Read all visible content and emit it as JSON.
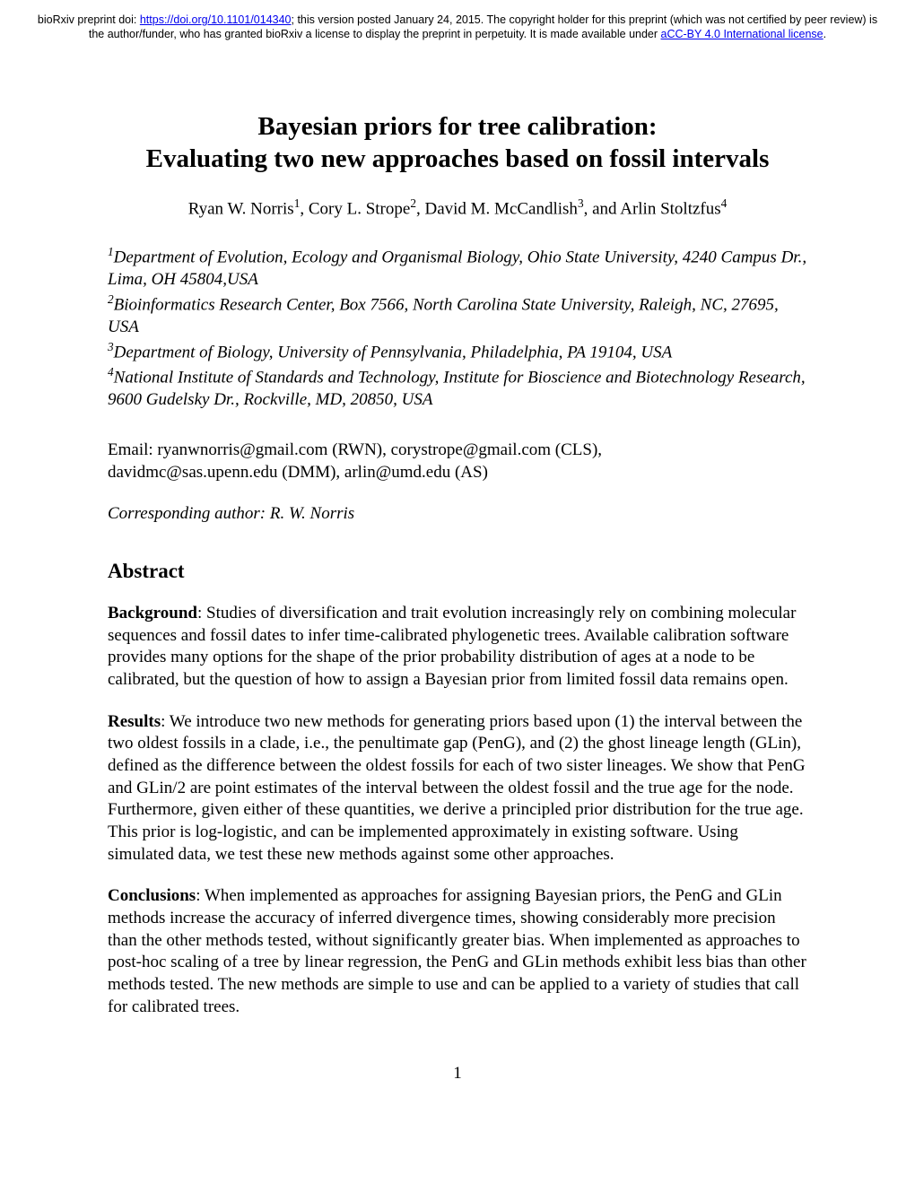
{
  "preprint_header": {
    "prefix": "bioRxiv preprint doi: ",
    "doi_url": "https://doi.org/10.1101/014340",
    "after_doi": "; this version posted January 24, 2015. The copyright holder for this preprint (which was not certified by peer review) is the author/funder, who has granted bioRxiv a license to display the preprint in perpetuity. It is made available under ",
    "license_text": "aCC-BY 4.0 International license",
    "period": "."
  },
  "title_line1": "Bayesian priors for tree calibration:",
  "title_line2": "Evaluating two new approaches based on fossil intervals",
  "authors": {
    "a1_name": "Ryan W. Norris",
    "a1_sup": "1",
    "sep1": ", ",
    "a2_name": "Cory L. Strope",
    "a2_sup": "2",
    "sep2": ", ",
    "a3_name": "David M. McCandlish",
    "a3_sup": "3",
    "sep3": ", and ",
    "a4_name": "Arlin Stoltzfus",
    "a4_sup": "4"
  },
  "affiliations": {
    "s1": "1",
    "t1": "Department of Evolution, Ecology and Organismal Biology, Ohio State University, 4240 Campus Dr., Lima, OH 45804,USA",
    "s2": "2",
    "t2": "Bioinformatics Research Center, Box 7566, North Carolina State University, Raleigh, NC, 27695, USA",
    "s3": "3",
    "t3": "Department of Biology, University of Pennsylvania, Philadelphia, PA 19104, USA",
    "s4": "4",
    "t4": "National Institute of Standards and Technology, Institute for Bioscience and Biotechnology Research, 9600 Gudelsky Dr., Rockville, MD, 20850, USA"
  },
  "emails_line1": "Email: ryanwnorris@gmail.com (RWN), corystrope@gmail.com (CLS),",
  "emails_line2": "davidmc@sas.upenn.edu (DMM), arlin@umd.edu (AS)",
  "corresponding": "Corresponding author: R. W. Norris",
  "abstract_heading": "Abstract",
  "abstract": {
    "background_label": "Background",
    "background_text": ": Studies of diversification and trait evolution increasingly rely on combining molecular sequences and fossil dates to infer time-calibrated phylogenetic trees.  Available calibration software provides many options for the shape of the prior probability distribution of ages at a node to be calibrated, but the question of how to assign a Bayesian prior from limited fossil data remains open.",
    "results_label": "Results",
    "results_text": ": We introduce two new methods for generating priors based upon (1) the interval between the two oldest fossils in a clade, i.e., the penultimate gap (PenG), and (2) the ghost lineage length (GLin), defined as the difference between the oldest fossils for each of two sister lineages. We show that PenG and GLin/2 are point estimates of the interval between the oldest fossil and the true age for the node. Furthermore, given either of these quantities, we derive a principled prior distribution for the true age.  This prior is log-logistic, and can be implemented approximately in existing software.  Using simulated data, we test these new methods against some other approaches.",
    "conclusions_label": "Conclusions",
    "conclusions_text": ": When implemented as approaches for assigning Bayesian priors, the PenG and GLin methods increase the accuracy of inferred divergence times, showing considerably more precision than the other methods tested, without significantly greater bias.  When implemented as approaches to post-hoc scaling of a tree by linear regression, the PenG and GLin methods exhibit less bias than other methods tested.  The new methods are simple to use and can be applied to a variety of studies that call for calibrated trees."
  },
  "page_number": "1"
}
